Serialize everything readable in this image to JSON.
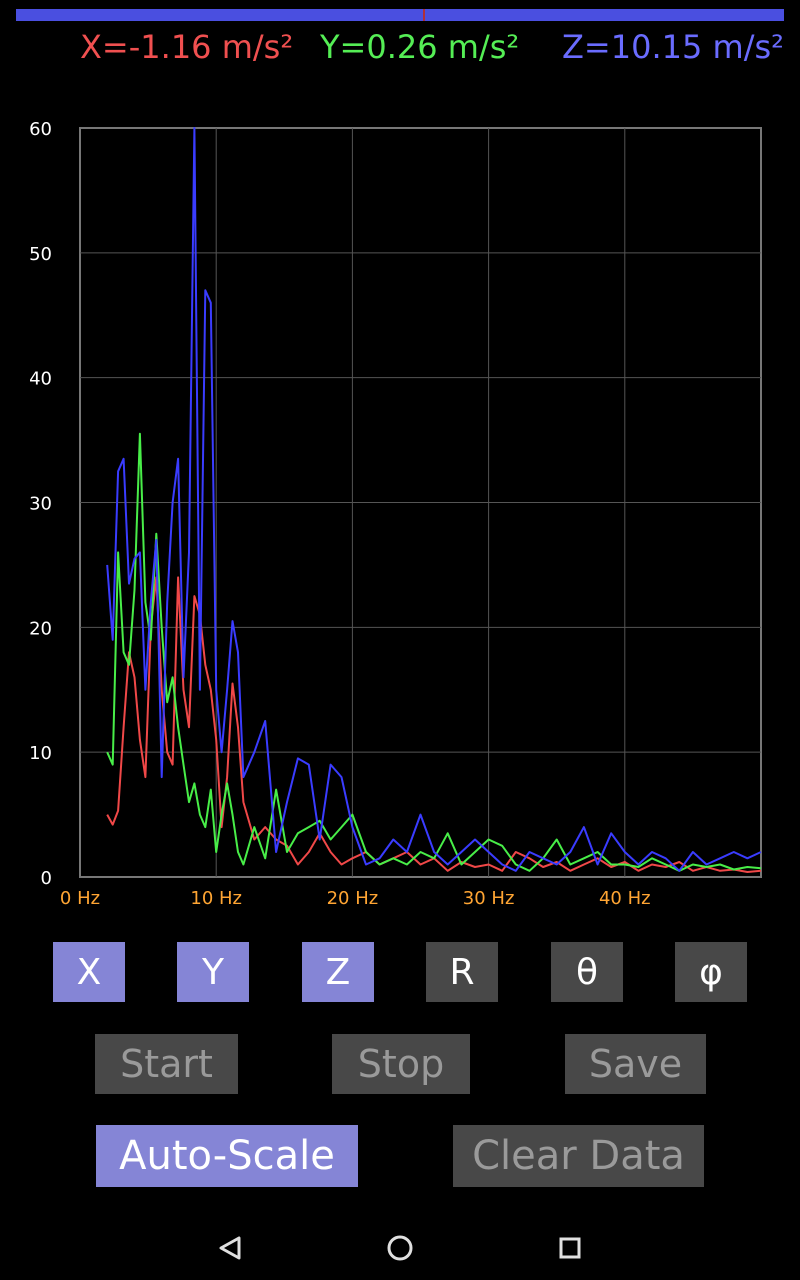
{
  "readouts": {
    "x": "X=-1.16 m/s²",
    "y": "Y=0.26 m/s²",
    "z": "Z=10.15 m/s²"
  },
  "colors": {
    "x": "#f04848",
    "y": "#48ee48",
    "z": "#3a3cff",
    "active_button": "#8585d6",
    "inactive_button": "#484848",
    "grid": "#555555",
    "x_tick": "#ffa533"
  },
  "chart_data": {
    "type": "line",
    "title": "",
    "xlabel": "",
    "ylabel": "",
    "xlim": [
      0,
      50
    ],
    "ylim": [
      0,
      60
    ],
    "x_ticks": [
      "0 Hz",
      "10 Hz",
      "20 Hz",
      "30 Hz",
      "40 Hz"
    ],
    "y_ticks": [
      "0",
      "10",
      "20",
      "30",
      "40",
      "50",
      "60"
    ],
    "grid": true,
    "series": [
      {
        "name": "X",
        "color": "#f04848",
        "x": [
          2,
          2.4,
          2.8,
          3.2,
          3.6,
          4,
          4.4,
          4.8,
          5.2,
          5.6,
          6,
          6.4,
          6.8,
          7.2,
          7.6,
          8,
          8.4,
          8.8,
          9.2,
          9.6,
          10,
          10.4,
          10.8,
          11.2,
          11.6,
          12,
          12.8,
          13.6,
          14.4,
          15.2,
          16,
          16.8,
          17.6,
          18.4,
          19.2,
          20,
          21,
          22,
          23,
          24,
          25,
          26,
          27,
          28,
          29,
          30,
          31,
          32,
          33,
          34,
          35,
          36,
          37,
          38,
          39,
          40,
          41,
          42,
          43,
          44,
          45,
          46,
          47,
          48,
          49,
          50
        ],
        "values": [
          5,
          4.2,
          5.3,
          12,
          18,
          16,
          11,
          8,
          20,
          24,
          15,
          10,
          9,
          24,
          15,
          12,
          22.5,
          21,
          17,
          15,
          11,
          4,
          8,
          15.5,
          12,
          6,
          3,
          4,
          3,
          2.5,
          1,
          2,
          3.5,
          2,
          1,
          1.5,
          2,
          1,
          1.5,
          2,
          1,
          1.5,
          0.5,
          1.2,
          0.8,
          1,
          0.5,
          2,
          1.5,
          0.8,
          1.2,
          0.5,
          1,
          1.5,
          0.8,
          1.2,
          0.5,
          1,
          0.8,
          1.2,
          0.5,
          0.8,
          0.5,
          0.6,
          0.4,
          0.5
        ]
      },
      {
        "name": "Y",
        "color": "#48ee48",
        "x": [
          2,
          2.4,
          2.8,
          3.2,
          3.6,
          4,
          4.4,
          4.8,
          5.2,
          5.6,
          6,
          6.4,
          6.8,
          7.2,
          7.6,
          8,
          8.4,
          8.8,
          9.2,
          9.6,
          10,
          10.4,
          10.8,
          11.2,
          11.6,
          12,
          12.8,
          13.6,
          14.4,
          15.2,
          16,
          16.8,
          17.6,
          18.4,
          19.2,
          20,
          21,
          22,
          23,
          24,
          25,
          26,
          27,
          28,
          29,
          30,
          31,
          32,
          33,
          34,
          35,
          36,
          37,
          38,
          39,
          40,
          41,
          42,
          43,
          44,
          45,
          46,
          47,
          48,
          49,
          50
        ],
        "values": [
          10,
          9,
          26,
          18,
          17,
          23,
          35.5,
          22,
          19,
          27.5,
          20,
          14,
          16,
          12,
          9,
          6,
          7.5,
          5,
          4,
          7,
          2,
          5,
          7.5,
          5,
          2,
          1,
          4,
          1.5,
          7,
          2,
          3.5,
          4,
          4.5,
          3,
          4,
          5,
          2,
          1,
          1.5,
          1,
          2,
          1.5,
          3.5,
          1,
          2,
          3,
          2.5,
          1,
          0.5,
          1.5,
          3,
          1,
          1.5,
          2,
          1,
          1,
          0.8,
          1.5,
          1,
          0.5,
          1,
          0.8,
          1,
          0.6,
          0.8,
          0.7
        ]
      },
      {
        "name": "Z",
        "color": "#3a3cff",
        "x": [
          2,
          2.4,
          2.8,
          3.2,
          3.6,
          4,
          4.4,
          4.8,
          5.2,
          5.6,
          6,
          6.4,
          6.8,
          7.2,
          7.6,
          8,
          8.4,
          8.8,
          9.2,
          9.6,
          10,
          10.4,
          10.8,
          11.2,
          11.6,
          12,
          12.8,
          13.6,
          14.4,
          15.2,
          16,
          16.8,
          17.6,
          18.4,
          19.2,
          20,
          21,
          22,
          23,
          24,
          25,
          26,
          27,
          28,
          29,
          30,
          31,
          32,
          33,
          34,
          35,
          36,
          37,
          38,
          39,
          40,
          41,
          42,
          43,
          44,
          45,
          46,
          47,
          48,
          49,
          50
        ],
        "values": [
          25,
          19,
          32.5,
          33.5,
          23.5,
          25.5,
          26,
          15,
          22,
          27,
          8,
          22,
          30,
          33.5,
          16,
          26,
          60,
          15,
          47,
          46,
          15,
          10,
          15,
          20.5,
          18,
          8,
          10,
          12.5,
          2,
          6,
          9.5,
          9,
          3,
          9,
          8,
          4,
          1,
          1.5,
          3,
          2,
          5,
          2,
          1,
          2,
          3,
          2,
          1,
          0.5,
          2,
          1.5,
          1,
          2,
          4,
          1,
          3.5,
          2,
          1,
          2,
          1.5,
          0.5,
          2,
          1,
          1.5,
          2,
          1.5,
          2
        ]
      }
    ]
  },
  "buttons": {
    "axis": [
      {
        "label": "X",
        "active": true
      },
      {
        "label": "Y",
        "active": true
      },
      {
        "label": "Z",
        "active": true
      },
      {
        "label": "R",
        "active": false
      },
      {
        "label": "θ",
        "active": false
      },
      {
        "label": "φ",
        "active": false
      }
    ],
    "start": "Start",
    "stop": "Stop",
    "save": "Save",
    "auto_scale": "Auto-Scale",
    "clear_data": "Clear Data"
  },
  "navbar": {
    "back_icon": "back-triangle-icon",
    "home_icon": "home-circle-icon",
    "recents_icon": "recents-square-icon"
  }
}
